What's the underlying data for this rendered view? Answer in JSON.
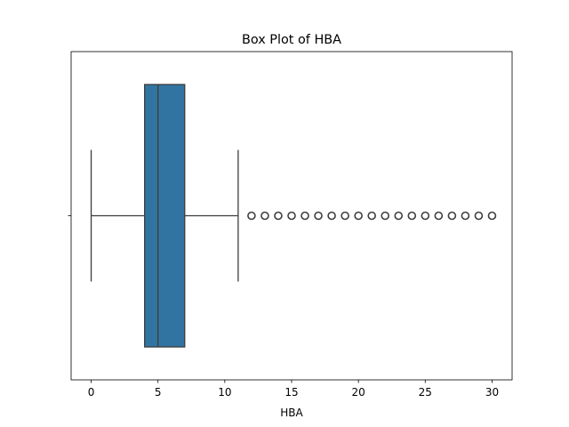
{
  "chart_data": {
    "type": "box",
    "title": "Box Plot of HBA",
    "xlabel": "HBA",
    "ylabel": "",
    "orientation": "horizontal",
    "xlim": [
      -1.5,
      31.5
    ],
    "x_ticks": [
      0,
      5,
      10,
      15,
      20,
      25,
      30
    ],
    "x_tick_labels": [
      "0",
      "5",
      "10",
      "15",
      "20",
      "25",
      "30"
    ],
    "box": {
      "whisker_low": 0,
      "q1": 4,
      "median": 5,
      "q3": 7,
      "whisker_high": 11
    },
    "outliers": [
      12,
      13,
      14,
      15,
      16,
      17,
      18,
      19,
      20,
      21,
      22,
      23,
      24,
      25,
      26,
      27,
      28,
      29,
      30
    ],
    "box_color": "#3274a1",
    "line_color": "#3d3d3d",
    "grid": false
  }
}
